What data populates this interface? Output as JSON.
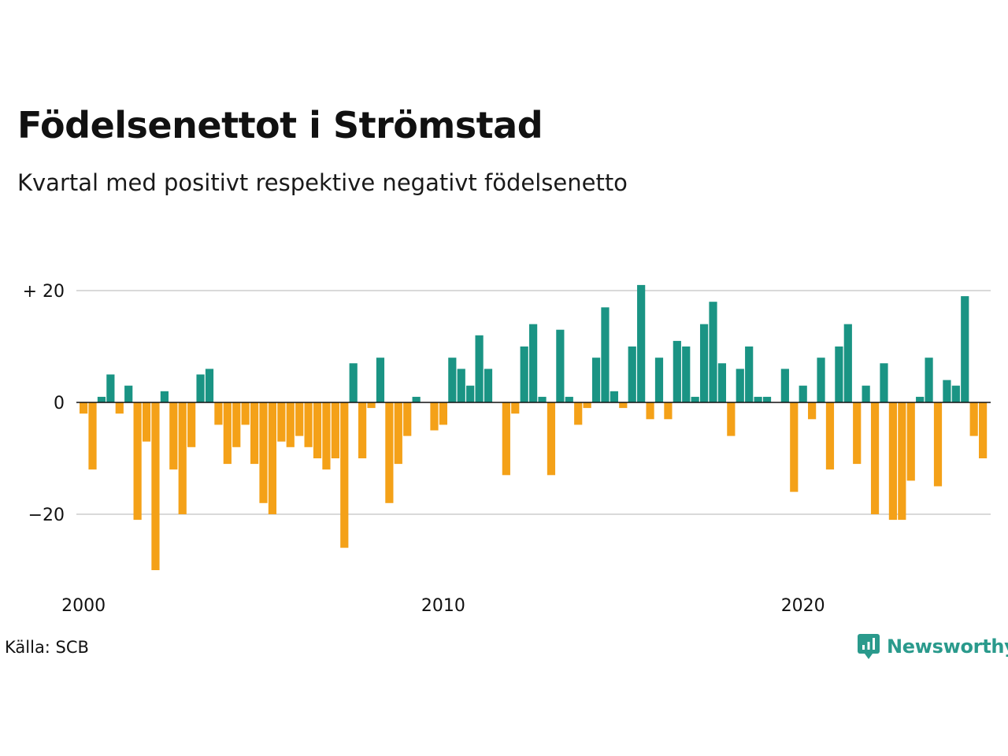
{
  "title": "Födelsenettot i Strömstad",
  "subtitle": "Kvartal med positivt respektive negativt födelsenetto",
  "source": "Källa: SCB",
  "brand": {
    "name": "Newsworthy",
    "icon": "newsworthy-logo-icon",
    "color": "#2a9a8c"
  },
  "colors": {
    "positive": "#1a9484",
    "negative": "#f4a118",
    "gridline": "#d9d9d9",
    "zeroline": "#111111"
  },
  "chart_data": {
    "type": "bar",
    "x_start": "2000 Q1",
    "x_interval": "quarter",
    "ylim": [
      -30,
      21
    ],
    "yticks": [
      {
        "value": 20,
        "label": "+ 20"
      },
      {
        "value": 0,
        "label": "0"
      },
      {
        "value": -20,
        "label": "−20"
      }
    ],
    "xticks": [
      "2000",
      "2010",
      "2020"
    ],
    "grid": true,
    "values": [
      -2,
      -12,
      1,
      5,
      -2,
      3,
      -21,
      -7,
      -30,
      2,
      -12,
      -20,
      -8,
      5,
      6,
      -4,
      -11,
      -8,
      -4,
      -11,
      -18,
      -20,
      -7,
      -8,
      -6,
      -8,
      -10,
      -12,
      -10,
      -26,
      7,
      -10,
      -1,
      8,
      -18,
      -11,
      -6,
      1,
      0,
      -5,
      -4,
      8,
      6,
      3,
      12,
      6,
      0,
      -13,
      -2,
      10,
      14,
      1,
      -13,
      13,
      1,
      -4,
      -1,
      8,
      17,
      2,
      -1,
      10,
      21,
      -3,
      8,
      -3,
      11,
      10,
      1,
      14,
      18,
      7,
      -6,
      6,
      10,
      1,
      1,
      0,
      6,
      -16,
      3,
      -3,
      8,
      -12,
      10,
      14,
      -11,
      3,
      -20,
      7,
      -21,
      -21,
      -14,
      1,
      8,
      -15,
      4,
      3,
      19,
      -6,
      -10
    ]
  }
}
